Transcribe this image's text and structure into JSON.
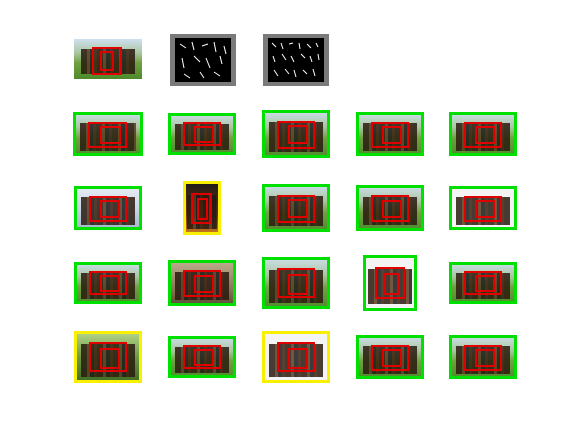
{
  "colors": {
    "frame_green": "#00e000",
    "frame_yellow": "#f8f000",
    "detection_red": "#e00000",
    "hog_panel": "#7a7a7a"
  },
  "model_row": {
    "root_thumb": {
      "scene": "grass"
    },
    "hog_panels": [
      {
        "name": "root-filter"
      },
      {
        "name": "part-filters"
      }
    ]
  },
  "grid": [
    [
      {
        "frame": "green",
        "scene": "grass"
      },
      {
        "frame": "green",
        "scene": "grass"
      },
      {
        "frame": "green",
        "scene": "grass"
      },
      {
        "frame": "green",
        "scene": "grass"
      },
      {
        "frame": "green",
        "scene": "grass"
      }
    ],
    [
      {
        "frame": "green",
        "scene": "sky"
      },
      {
        "frame": "yellow",
        "scene": "dark"
      },
      {
        "frame": "green",
        "scene": "grass"
      },
      {
        "frame": "green",
        "scene": "grass"
      },
      {
        "frame": "green",
        "scene": "white"
      }
    ],
    [
      {
        "frame": "green",
        "scene": "grass"
      },
      {
        "frame": "green",
        "scene": "indoor"
      },
      {
        "frame": "green",
        "scene": "grass"
      },
      {
        "frame": "green",
        "scene": "white"
      },
      {
        "frame": "green",
        "scene": "grass"
      }
    ],
    [
      {
        "frame": "yellow",
        "scene": "forest"
      },
      {
        "frame": "green",
        "scene": "grass"
      },
      {
        "frame": "yellow",
        "scene": "white"
      },
      {
        "frame": "green",
        "scene": "grass"
      },
      {
        "frame": "green",
        "scene": "grass"
      }
    ]
  ]
}
